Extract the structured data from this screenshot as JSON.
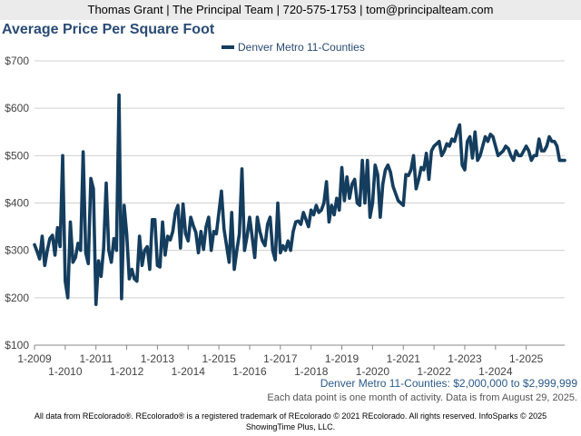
{
  "header": {
    "contact": "Thomas Grant | The Principal Team | 720-575-1753 | tom@principalteam.com"
  },
  "footer": {
    "subtitle": "Denver Metro 11-Counties: $2,000,000 to $2,999,999",
    "note": "Each data point is one month of activity. Data is from August 29, 2025.",
    "disclaimer_line1": "All data from REcolorado®. REcolorado® is a registered trademark of REcolorado © 2021 REcolorado. All rights reserved. InfoSparks © 2025",
    "disclaimer_line2": "ShowingTime Plus, LLC."
  },
  "colors": {
    "series": "#143d5e",
    "title": "#2a4b74",
    "grid": "#d0d0d0"
  },
  "chart_data": {
    "type": "line",
    "title": "Average Price Per Square Foot",
    "xlabel": "",
    "ylabel": "",
    "ylim": [
      100,
      700
    ],
    "yticks": [
      100,
      200,
      300,
      400,
      500,
      600,
      700
    ],
    "ytick_labels": [
      "$100",
      "$200",
      "$300",
      "$400",
      "$500",
      "$600",
      "$700"
    ],
    "x_start": "1-2009",
    "xtick_labels": [
      "1-2009",
      "1-2010",
      "1-2011",
      "1-2012",
      "1-2013",
      "1-2014",
      "1-2015",
      "1-2016",
      "1-2017",
      "1-2018",
      "1-2019",
      "1-2020",
      "1-2021",
      "1-2022",
      "1-2023",
      "1-2024",
      "1-2025"
    ],
    "legend_position": "top-center",
    "grid": true,
    "series": [
      {
        "name": "Denver Metro 11-Counties",
        "values": [
          312,
          298,
          282,
          330,
          268,
          300,
          325,
          332,
          290,
          348,
          308,
          500,
          235,
          200,
          360,
          275,
          285,
          315,
          300,
          508,
          295,
          272,
          452,
          430,
          186,
          278,
          245,
          305,
          442,
          300,
          275,
          325,
          300,
          628,
          198,
          395,
          335,
          240,
          260,
          240,
          235,
          330,
          268,
          300,
          308,
          260,
          365,
          365,
          268,
          265,
          360,
          290,
          330,
          322,
          340,
          380,
          395,
          305,
          398,
          335,
          320,
          370,
          352,
          338,
          295,
          340,
          302,
          350,
          370,
          300,
          340,
          335,
          380,
          425,
          345,
          310,
          275,
          380,
          260,
          300,
          335,
          472,
          300,
          330,
          370,
          328,
          285,
          370,
          340,
          320,
          310,
          355,
          370,
          300,
          280,
          400,
          295,
          310,
          300,
          320,
          300,
          340,
          360,
          362,
          355,
          380,
          365,
          350,
          385,
          375,
          395,
          380,
          385,
          400,
          445,
          360,
          395,
          375,
          410,
          385,
          475,
          405,
          455,
          410,
          440,
          450,
          400,
          395,
          490,
          400,
          490,
          370,
          400,
          480,
          460,
          370,
          440,
          470,
          480,
          465,
          435,
          420,
          405,
          400,
          395,
          460,
          458,
          470,
          500,
          430,
          450,
          475,
          470,
          505,
          450,
          510,
          520,
          525,
          530,
          500,
          510,
          525,
          520,
          535,
          530,
          550,
          565,
          480,
          470,
          530,
          540,
          495,
          550,
          490,
          500,
          520,
          540,
          530,
          545,
          540,
          520,
          500,
          505,
          510,
          520,
          515,
          500,
          490,
          510,
          500,
          500,
          510,
          520,
          510,
          490,
          500,
          500,
          535,
          510,
          510,
          520,
          540,
          530,
          530,
          520,
          490,
          490,
          490
        ]
      }
    ]
  }
}
